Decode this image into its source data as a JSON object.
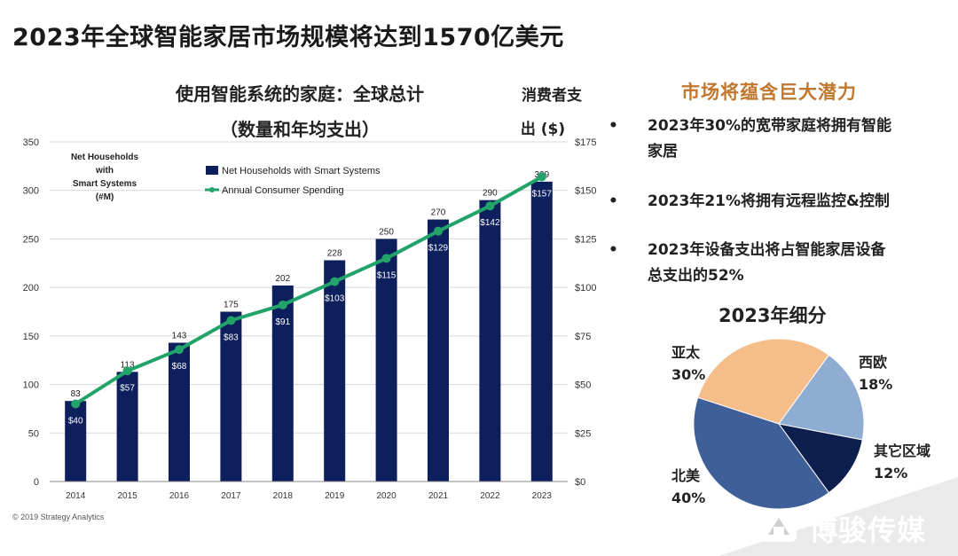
{
  "page": {
    "title": "2023年全球智能家居市场规模将达到1570亿美元",
    "copyright": "© 2019 Strategy Analytics",
    "watermark": "博骏传媒"
  },
  "chart_data": [
    {
      "type": "bar",
      "title": "使用智能系统的家庭：全球总计",
      "subtitle": "（数量和年均支出）",
      "y2_title_line1": "消费者支",
      "y2_title_line2": "出 ($)",
      "inner_label_lines": [
        "Net Households",
        "with",
        "Smart Systems",
        "(#M)"
      ],
      "categories": [
        "2014",
        "2015",
        "2016",
        "2017",
        "2018",
        "2019",
        "2020",
        "2021",
        "2022",
        "2023"
      ],
      "series": [
        {
          "name": "Net Households with Smart Systems",
          "axis": "left",
          "kind": "bar",
          "color": "#0d1f5c",
          "values": [
            83,
            113,
            143,
            175,
            202,
            228,
            250,
            270,
            290,
            309
          ],
          "labels": [
            "83",
            "113",
            "143",
            "175",
            "202",
            "228",
            "250",
            "270",
            "290",
            "309"
          ]
        },
        {
          "name": "Annual Consumer Spending",
          "axis": "right",
          "kind": "line",
          "color": "#22a36a",
          "values": [
            40,
            57,
            68,
            83,
            91,
            103,
            115,
            129,
            142,
            157
          ],
          "labels": [
            "$40",
            "$57",
            "$68",
            "$83",
            "$91",
            "$103",
            "$115",
            "$129",
            "$142",
            "$157"
          ]
        }
      ],
      "y_ticks": [
        "0",
        "50",
        "100",
        "150",
        "200",
        "250",
        "300",
        "350"
      ],
      "ylim": [
        0,
        350
      ],
      "y2_ticks": [
        "$0",
        "$25",
        "$50",
        "$75",
        "$100",
        "$125",
        "$150",
        "$175"
      ],
      "y2lim": [
        0,
        175
      ],
      "grid": "horizontal",
      "legend_position": "top-center"
    },
    {
      "type": "pie",
      "title": "2023年细分",
      "slices": [
        {
          "label": "亚太",
          "value": 30,
          "value_label": "30%",
          "color": "#f4bd8a"
        },
        {
          "label": "西欧",
          "value": 18,
          "value_label": "18%",
          "color": "#8facd3"
        },
        {
          "label": "其它区域",
          "value": 12,
          "value_label": "12%",
          "color": "#0d1f4e"
        },
        {
          "label": "北美",
          "value": 40,
          "value_label": "40%",
          "color": "#3e5f98"
        }
      ]
    }
  ],
  "sidebar": {
    "title": "市场将蕴含巨大潜力",
    "bullets": [
      {
        "dot": "•",
        "line1": "2023年30%的宽带家庭将拥有智能",
        "line2": "家居"
      },
      {
        "dot": "•",
        "line1": "2023年21%将拥有远程监控&控制",
        "line2": ""
      },
      {
        "dot": "•",
        "line1": "2023年设备支出将占智能家居设备",
        "line2": "总支出的52%"
      }
    ]
  },
  "colors": {
    "bar": "#0d1f5c",
    "line": "#22a36a",
    "accent_title": "#c1772e"
  }
}
